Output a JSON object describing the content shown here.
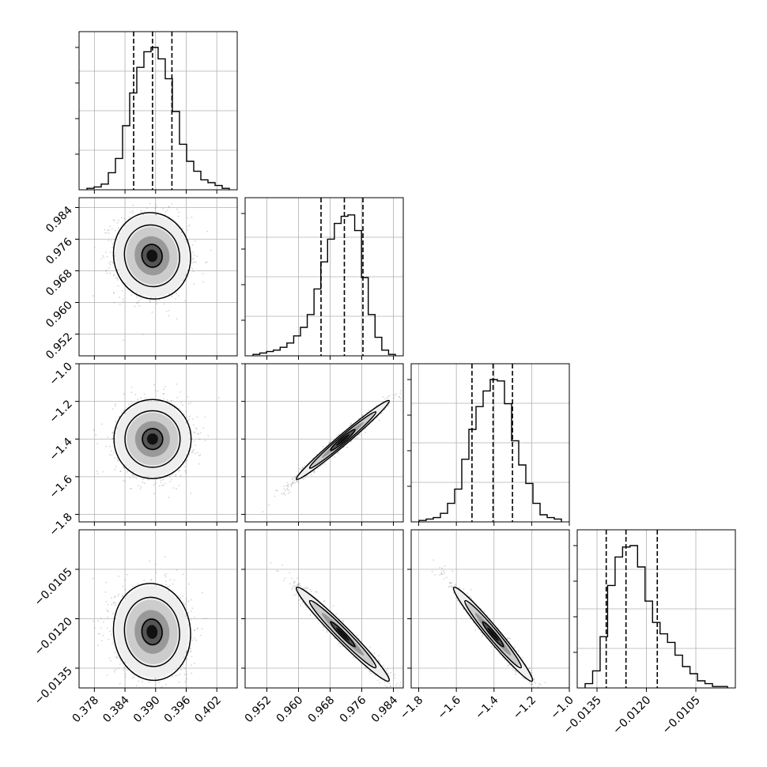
{
  "chart_data": {
    "type": "scatter",
    "subtype": "corner-plot",
    "grid": true,
    "quantile_lines": "dashed",
    "params": [
      {
        "range": [
          0.375,
          0.406
        ],
        "ticks": [
          "0.378",
          "0.384",
          "0.390",
          "0.396",
          "0.402"
        ],
        "quantiles": [
          0.3857,
          0.3894,
          0.3932
        ]
      },
      {
        "range": [
          0.9465,
          0.9865
        ],
        "ticks": [
          "0.952",
          "0.960",
          "0.968",
          "0.976",
          "0.984"
        ],
        "quantiles": [
          0.9657,
          0.9716,
          0.9763
        ]
      },
      {
        "range": [
          -1.84,
          -1.0
        ],
        "ticks": [
          "−1.8",
          "−1.6",
          "−1.4",
          "−1.2",
          "−1.0"
        ],
        "quantiles": [
          -1.517,
          -1.405,
          -1.302
        ]
      },
      {
        "range": [
          -0.0141,
          -0.0093
        ],
        "ticks": [
          "−0.0135",
          "−0.0120",
          "−0.0105"
        ],
        "quantiles": [
          -0.01322,
          -0.01262,
          -0.01167
        ]
      }
    ],
    "histograms": [
      [
        0.01,
        0.02,
        0.04,
        0.12,
        0.22,
        0.45,
        0.68,
        0.86,
        0.97,
        1.0,
        0.92,
        0.78,
        0.55,
        0.32,
        0.2,
        0.13,
        0.07,
        0.05,
        0.03,
        0.01
      ],
      [
        0.01,
        0.02,
        0.03,
        0.04,
        0.06,
        0.09,
        0.14,
        0.2,
        0.29,
        0.47,
        0.66,
        0.82,
        0.93,
        0.98,
        0.99,
        0.88,
        0.55,
        0.29,
        0.13,
        0.04,
        0.01
      ],
      [
        0.01,
        0.02,
        0.03,
        0.06,
        0.13,
        0.23,
        0.44,
        0.65,
        0.81,
        0.92,
        1.0,
        0.99,
        0.83,
        0.57,
        0.4,
        0.27,
        0.13,
        0.05,
        0.03,
        0.02
      ],
      [
        0.03,
        0.12,
        0.36,
        0.72,
        0.92,
        0.99,
        1.0,
        0.85,
        0.61,
        0.46,
        0.38,
        0.32,
        0.23,
        0.15,
        0.1,
        0.05,
        0.03,
        0.01,
        0.01
      ]
    ],
    "pair_stats": [
      {
        "row": 1,
        "col": 0,
        "cx": 0.3893,
        "cy": 0.9718,
        "sx": 0.0036,
        "sy": 0.0052,
        "rho": -0.05
      },
      {
        "row": 2,
        "col": 0,
        "cx": 0.3894,
        "cy": -1.4,
        "sx": 0.0036,
        "sy": 0.1,
        "rho": 0.0
      },
      {
        "row": 2,
        "col": 1,
        "cx": 0.9712,
        "cy": -1.405,
        "sx": 0.0056,
        "sy": 0.1,
        "rho": 0.985
      },
      {
        "row": 3,
        "col": 0,
        "cx": 0.3893,
        "cy": -0.0124,
        "sx": 0.0036,
        "sy": 0.0007,
        "rho": -0.05
      },
      {
        "row": 3,
        "col": 1,
        "cx": 0.9712,
        "cy": -0.01247,
        "sx": 0.0056,
        "sy": 0.00068,
        "rho": -0.975
      },
      {
        "row": 3,
        "col": 2,
        "cx": -1.405,
        "cy": -0.01247,
        "sx": 0.1,
        "sy": 0.00068,
        "rho": -0.975
      }
    ]
  }
}
